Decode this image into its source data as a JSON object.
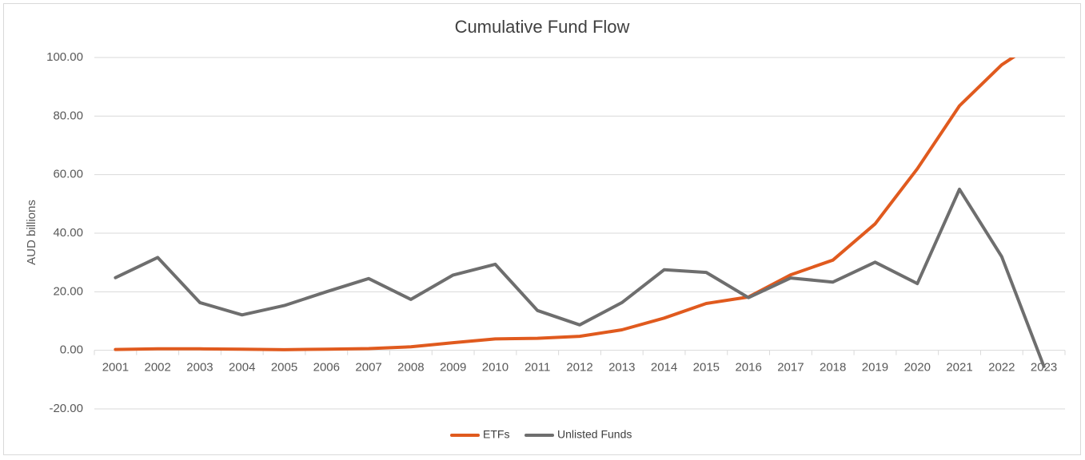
{
  "chart_data": {
    "type": "line",
    "title": "Cumulative Fund Flow",
    "xlabel": "",
    "ylabel": "AUD billions",
    "categories": [
      "2001",
      "2002",
      "2003",
      "2004",
      "2005",
      "2006",
      "2007",
      "2008",
      "2009",
      "2010",
      "2011",
      "2012",
      "2013",
      "2014",
      "2015",
      "2016",
      "2017",
      "2018",
      "2019",
      "2020",
      "2021",
      "2022",
      "2023"
    ],
    "ylim": [
      -20,
      100
    ],
    "yticks": [
      -20,
      0,
      20,
      40,
      60,
      80,
      100
    ],
    "ytick_labels": [
      "-20.00",
      "0.00",
      "20.00",
      "40.00",
      "60.00",
      "80.00",
      "100.00"
    ],
    "grid": true,
    "legend_position": "bottom",
    "series": [
      {
        "name": "ETFs",
        "color": "#e05a1e",
        "values": [
          0.3,
          0.5,
          0.5,
          0.4,
          0.2,
          0.4,
          0.6,
          1.2,
          2.6,
          3.9,
          4.1,
          4.8,
          7.0,
          11.0,
          16.0,
          18.2,
          25.8,
          30.8,
          43.2,
          62.0,
          83.5,
          97.5,
          107.0
        ]
      },
      {
        "name": "Unlisted Funds",
        "color": "#6e6e6e",
        "values": [
          24.8,
          31.7,
          16.3,
          12.1,
          15.3,
          20.0,
          24.5,
          17.4,
          25.7,
          29.4,
          13.6,
          8.7,
          16.3,
          27.5,
          26.6,
          18.0,
          24.7,
          23.3,
          30.1,
          22.8,
          55.0,
          32.0,
          -5.5
        ]
      }
    ]
  }
}
